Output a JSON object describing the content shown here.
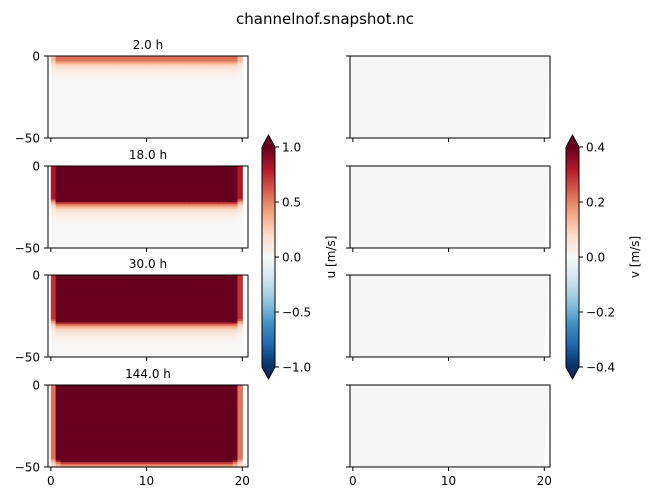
{
  "title": "channelnof.snapshot.nc",
  "chart_data": {
    "type": "heatmap",
    "title": "channelnof.snapshot.nc",
    "panels": [
      {
        "title": "2.0 h",
        "time_h": 2.0,
        "u_core": 0.55,
        "u_depth_m": 3,
        "u_side_width": 0.5
      },
      {
        "title": "18.0 h",
        "time_h": 18.0,
        "u_core": 1.0,
        "u_depth_m": 20,
        "u_side_width": 0.6
      },
      {
        "title": "30.0 h",
        "time_h": 30.0,
        "u_core": 1.0,
        "u_depth_m": 27,
        "u_side_width": 0.7
      },
      {
        "title": "144.0 h",
        "time_h": 144.0,
        "u_core": 1.0,
        "u_depth_m": 45,
        "u_side_width": 1.1
      }
    ],
    "x": {
      "ticks": [
        0,
        10,
        20
      ],
      "tick_labels": [
        "0",
        "10",
        "20"
      ],
      "range": [
        -0.3,
        20.6
      ]
    },
    "y": {
      "ticks": [
        0,
        -50
      ],
      "tick_labels": [
        "0",
        "−50"
      ],
      "range": [
        -50,
        0
      ]
    },
    "colorbars": [
      {
        "name": "u",
        "label": "u [m/s]",
        "range": [
          -1.0,
          1.0
        ],
        "ticks": [
          1.0,
          0.5,
          0.0,
          -0.5,
          -1.0
        ],
        "tick_labels": [
          "1.0",
          "0.5",
          "0.0",
          "−0.5",
          "−1.0"
        ],
        "colormap": "RdBu_r",
        "extend": "both"
      },
      {
        "name": "v",
        "label": "v [m/s]",
        "range": [
          -0.4,
          0.4
        ],
        "ticks": [
          0.4,
          0.2,
          0.0,
          -0.2,
          -0.4
        ],
        "tick_labels": [
          "0.4",
          "0.2",
          "0.0",
          "−0.2",
          "−0.4"
        ],
        "colormap": "RdBu_r",
        "extend": "both"
      }
    ]
  }
}
